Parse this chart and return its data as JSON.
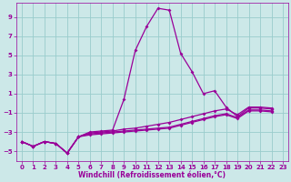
{
  "xlabel": "Windchill (Refroidissement éolien,°C)",
  "background_color": "#cce8e8",
  "line_color": "#990099",
  "grid_color": "#99cccc",
  "xlim": [
    -0.5,
    23.5
  ],
  "ylim": [
    -6.0,
    10.5
  ],
  "xticks": [
    0,
    1,
    2,
    3,
    4,
    5,
    6,
    7,
    8,
    9,
    10,
    11,
    12,
    13,
    14,
    15,
    16,
    17,
    18,
    19,
    20,
    21,
    22,
    23
  ],
  "yticks": [
    -5,
    -3,
    -1,
    1,
    3,
    5,
    7,
    9
  ],
  "line1_x": [
    0,
    1,
    2,
    3,
    4,
    5,
    6,
    7,
    8,
    9,
    10,
    11,
    12,
    13,
    14,
    15,
    16,
    17,
    18,
    19,
    20,
    21,
    22
  ],
  "line1_y": [
    -4.0,
    -4.5,
    -4.0,
    -4.2,
    -5.2,
    -3.5,
    -3.0,
    -2.9,
    -2.8,
    0.4,
    5.5,
    8.0,
    9.9,
    9.7,
    5.2,
    3.3,
    1.0,
    1.3,
    -0.4,
    -1.4,
    -0.5,
    -0.5,
    -0.6
  ],
  "line2_x": [
    0,
    1,
    2,
    3,
    4,
    5,
    6,
    7,
    8,
    9,
    10,
    11,
    12,
    13,
    14,
    15,
    16,
    17,
    18,
    19,
    20,
    21,
    22
  ],
  "line2_y": [
    -4.0,
    -4.5,
    -4.0,
    -4.2,
    -5.2,
    -3.5,
    -3.1,
    -3.0,
    -2.9,
    -2.7,
    -2.6,
    -2.4,
    -2.2,
    -2.0,
    -1.7,
    -1.4,
    -1.1,
    -0.8,
    -0.6,
    -1.2,
    -0.4,
    -0.4,
    -0.5
  ],
  "line3_x": [
    0,
    1,
    2,
    3,
    4,
    5,
    6,
    7,
    8,
    9,
    10,
    11,
    12,
    13,
    14,
    15,
    16,
    17,
    18,
    19,
    20,
    21,
    22
  ],
  "line3_y": [
    -4.0,
    -4.5,
    -4.0,
    -4.2,
    -5.2,
    -3.5,
    -3.2,
    -3.1,
    -3.0,
    -2.9,
    -2.8,
    -2.7,
    -2.6,
    -2.5,
    -2.2,
    -1.9,
    -1.6,
    -1.3,
    -1.1,
    -1.5,
    -0.7,
    -0.7,
    -0.8
  ],
  "line4_x": [
    0,
    1,
    2,
    3,
    4,
    5,
    6,
    7,
    8,
    9,
    10,
    11,
    12,
    13,
    14,
    15,
    16,
    17,
    18,
    19,
    20,
    21,
    22
  ],
  "line4_y": [
    -4.0,
    -4.5,
    -4.0,
    -4.2,
    -5.2,
    -3.5,
    -3.3,
    -3.2,
    -3.1,
    -3.0,
    -2.9,
    -2.8,
    -2.7,
    -2.6,
    -2.3,
    -2.0,
    -1.7,
    -1.4,
    -1.2,
    -1.6,
    -0.8,
    -0.8,
    -0.9
  ]
}
